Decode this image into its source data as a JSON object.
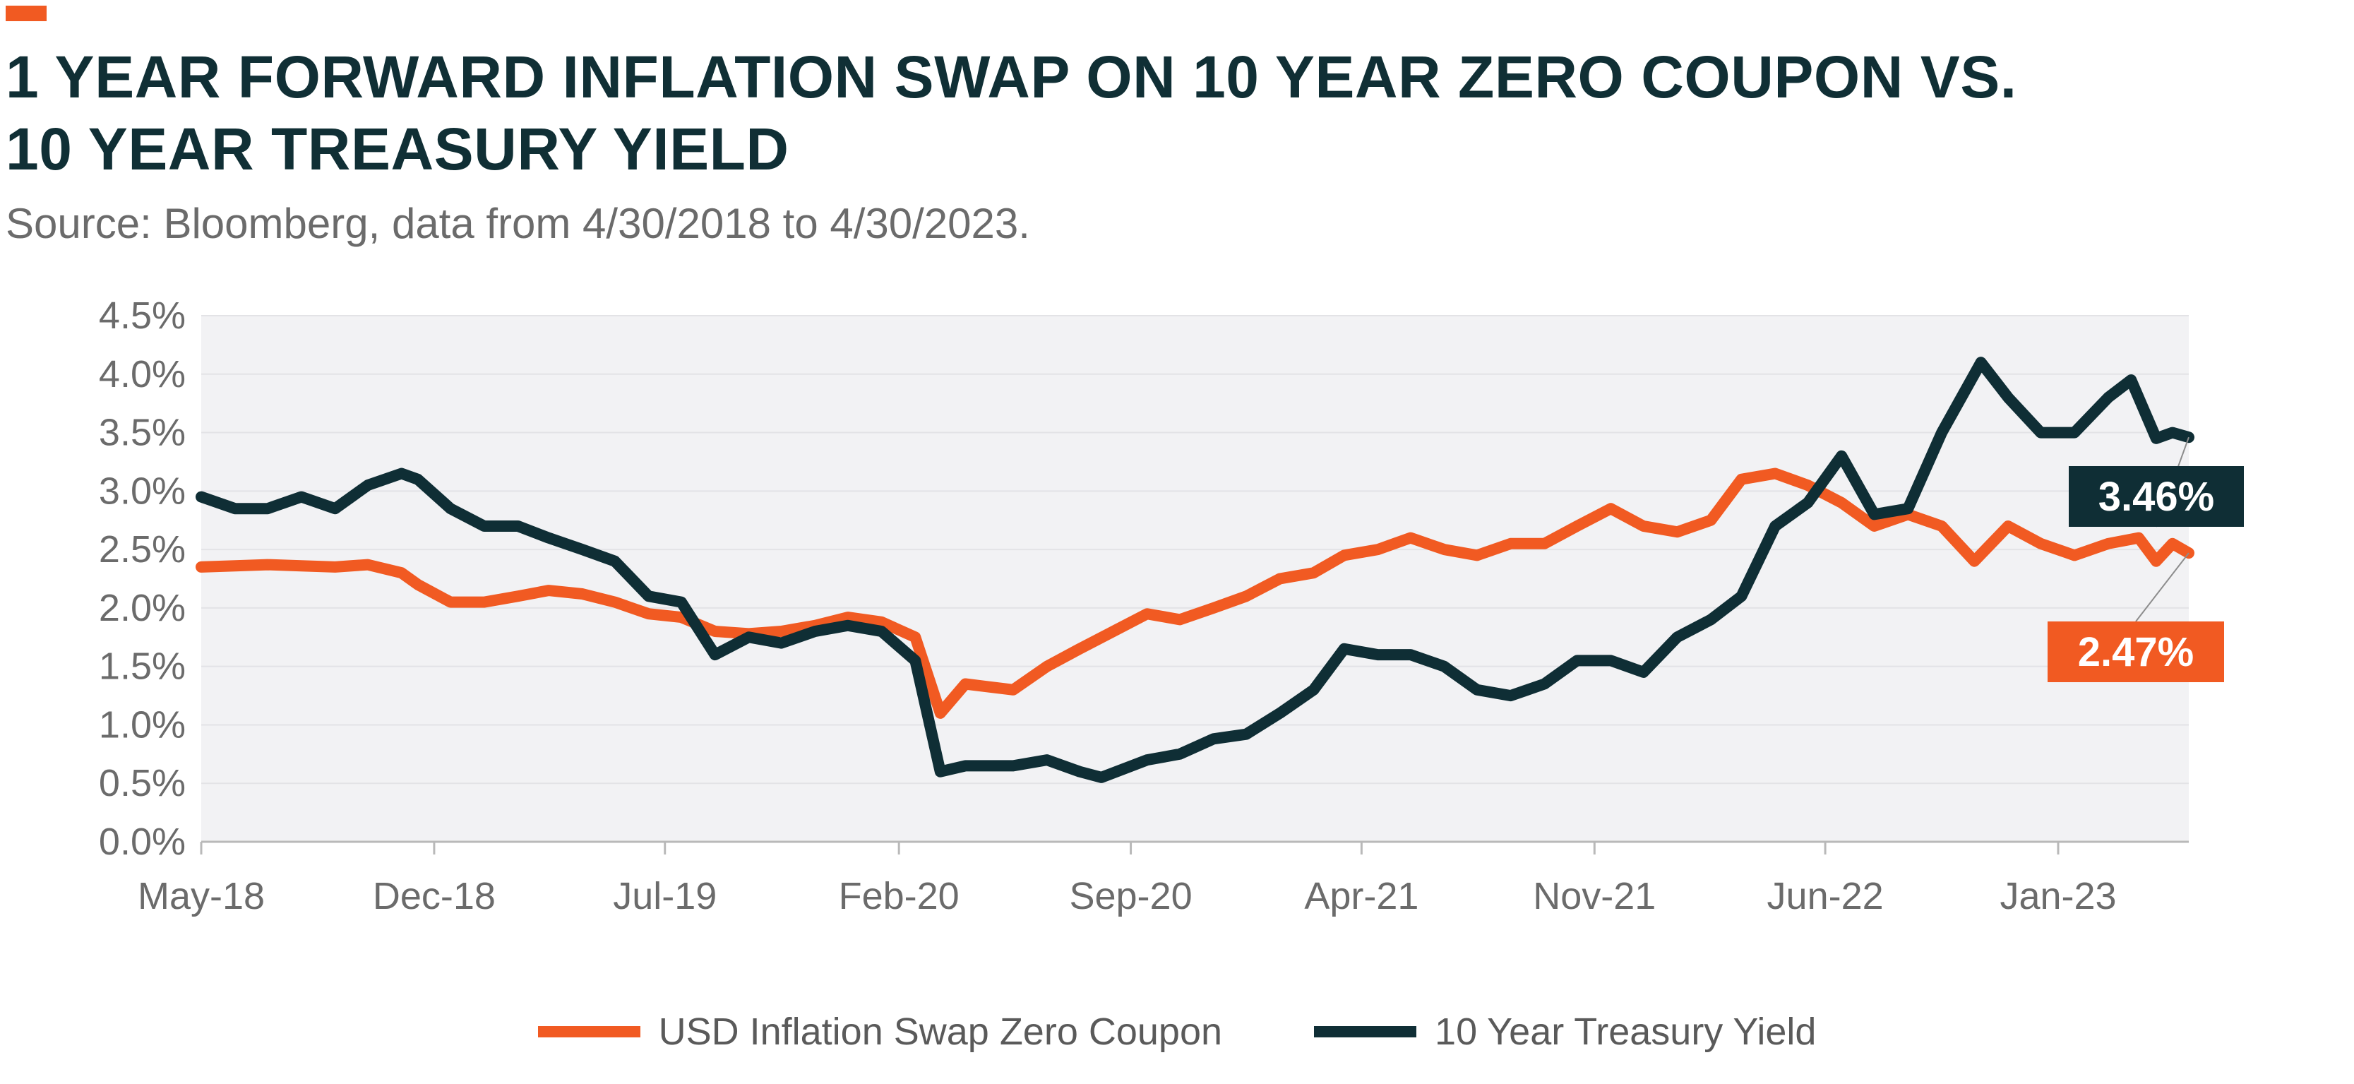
{
  "title_lines": [
    "1 YEAR FORWARD INFLATION SWAP ON 10 YEAR ZERO COUPON VS.",
    "10 YEAR TREASURY YIELD"
  ],
  "subtitle": "Source: Bloomberg, data from 4/30/2018 to 4/30/2023.",
  "chart_data": {
    "type": "line",
    "title": "1 YEAR FORWARD INFLATION SWAP ON 10 YEAR ZERO COUPON VS. 10 YEAR TREASURY YIELD",
    "xlabel": "",
    "ylabel": "",
    "xlim": [
      "2018-04-30",
      "2023-04-30"
    ],
    "ylim": [
      0,
      4.5
    ],
    "yticks": [
      "0.0%",
      "0.5%",
      "1.0%",
      "1.5%",
      "2.0%",
      "2.5%",
      "3.0%",
      "3.5%",
      "4.0%",
      "4.5%"
    ],
    "xticks": [
      {
        "label": "May-18",
        "date": "2018-04-30"
      },
      {
        "label": "Dec-18",
        "date": "2018-11-30"
      },
      {
        "label": "Jul-19",
        "date": "2019-06-30"
      },
      {
        "label": "Feb-20",
        "date": "2020-01-31"
      },
      {
        "label": "Sep-20",
        "date": "2020-08-31"
      },
      {
        "label": "Apr-21",
        "date": "2021-03-31"
      },
      {
        "label": "Nov-21",
        "date": "2021-10-31"
      },
      {
        "label": "Jun-22",
        "date": "2022-05-31"
      },
      {
        "label": "Jan-23",
        "date": "2022-12-31"
      }
    ],
    "grid": true,
    "legend_position": "bottom",
    "series": [
      {
        "name": "USD Inflation Swap Zero Coupon",
        "color": "#f15a22",
        "end_label": "2.47%",
        "points": [
          [
            "2018-04-30",
            2.35
          ],
          [
            "2018-05-31",
            2.36
          ],
          [
            "2018-06-30",
            2.37
          ],
          [
            "2018-07-31",
            2.36
          ],
          [
            "2018-08-31",
            2.35
          ],
          [
            "2018-09-30",
            2.37
          ],
          [
            "2018-10-31",
            2.3
          ],
          [
            "2018-11-15",
            2.2
          ],
          [
            "2018-12-15",
            2.05
          ],
          [
            "2019-01-15",
            2.05
          ],
          [
            "2019-02-15",
            2.1
          ],
          [
            "2019-03-15",
            2.15
          ],
          [
            "2019-04-15",
            2.12
          ],
          [
            "2019-05-15",
            2.05
          ],
          [
            "2019-06-15",
            1.95
          ],
          [
            "2019-07-15",
            1.92
          ],
          [
            "2019-08-15",
            1.8
          ],
          [
            "2019-09-15",
            1.78
          ],
          [
            "2019-10-15",
            1.8
          ],
          [
            "2019-11-15",
            1.85
          ],
          [
            "2019-12-15",
            1.92
          ],
          [
            "2020-01-15",
            1.88
          ],
          [
            "2020-02-15",
            1.75
          ],
          [
            "2020-03-09",
            1.1
          ],
          [
            "2020-04-01",
            1.35
          ],
          [
            "2020-05-15",
            1.3
          ],
          [
            "2020-06-15",
            1.5
          ],
          [
            "2020-07-15",
            1.65
          ],
          [
            "2020-08-15",
            1.8
          ],
          [
            "2020-09-15",
            1.95
          ],
          [
            "2020-10-15",
            1.9
          ],
          [
            "2020-11-15",
            2.0
          ],
          [
            "2020-12-15",
            2.1
          ],
          [
            "2021-01-15",
            2.25
          ],
          [
            "2021-02-15",
            2.3
          ],
          [
            "2021-03-15",
            2.45
          ],
          [
            "2021-04-15",
            2.5
          ],
          [
            "2021-05-15",
            2.6
          ],
          [
            "2021-06-15",
            2.5
          ],
          [
            "2021-07-15",
            2.45
          ],
          [
            "2021-08-15",
            2.55
          ],
          [
            "2021-09-15",
            2.55
          ],
          [
            "2021-10-15",
            2.7
          ],
          [
            "2021-11-15",
            2.85
          ],
          [
            "2021-12-15",
            2.7
          ],
          [
            "2022-01-15",
            2.65
          ],
          [
            "2022-02-15",
            2.75
          ],
          [
            "2022-03-15",
            3.1
          ],
          [
            "2022-04-15",
            3.15
          ],
          [
            "2022-05-15",
            3.05
          ],
          [
            "2022-06-15",
            2.9
          ],
          [
            "2022-07-15",
            2.7
          ],
          [
            "2022-08-15",
            2.8
          ],
          [
            "2022-09-15",
            2.7
          ],
          [
            "2022-10-15",
            2.4
          ],
          [
            "2022-11-15",
            2.7
          ],
          [
            "2022-12-15",
            2.55
          ],
          [
            "2023-01-15",
            2.45
          ],
          [
            "2023-02-15",
            2.55
          ],
          [
            "2023-03-15",
            2.6
          ],
          [
            "2023-03-31",
            2.4
          ],
          [
            "2023-04-15",
            2.55
          ],
          [
            "2023-04-30",
            2.47
          ]
        ]
      },
      {
        "name": "10 Year Treasury Yield",
        "color": "#0f2e35",
        "end_label": "3.46%",
        "points": [
          [
            "2018-04-30",
            2.95
          ],
          [
            "2018-05-31",
            2.85
          ],
          [
            "2018-06-30",
            2.85
          ],
          [
            "2018-07-31",
            2.95
          ],
          [
            "2018-08-31",
            2.85
          ],
          [
            "2018-09-30",
            3.05
          ],
          [
            "2018-10-31",
            3.15
          ],
          [
            "2018-11-15",
            3.1
          ],
          [
            "2018-12-15",
            2.85
          ],
          [
            "2019-01-15",
            2.7
          ],
          [
            "2019-02-15",
            2.7
          ],
          [
            "2019-03-15",
            2.6
          ],
          [
            "2019-04-15",
            2.5
          ],
          [
            "2019-05-15",
            2.4
          ],
          [
            "2019-06-15",
            2.1
          ],
          [
            "2019-07-15",
            2.05
          ],
          [
            "2019-08-15",
            1.6
          ],
          [
            "2019-09-15",
            1.75
          ],
          [
            "2019-10-15",
            1.7
          ],
          [
            "2019-11-15",
            1.8
          ],
          [
            "2019-12-15",
            1.85
          ],
          [
            "2020-01-15",
            1.8
          ],
          [
            "2020-02-15",
            1.55
          ],
          [
            "2020-03-09",
            0.6
          ],
          [
            "2020-04-01",
            0.65
          ],
          [
            "2020-05-15",
            0.65
          ],
          [
            "2020-06-15",
            0.7
          ],
          [
            "2020-07-15",
            0.6
          ],
          [
            "2020-08-04",
            0.55
          ],
          [
            "2020-09-15",
            0.7
          ],
          [
            "2020-10-15",
            0.75
          ],
          [
            "2020-11-15",
            0.88
          ],
          [
            "2020-12-15",
            0.92
          ],
          [
            "2021-01-15",
            1.1
          ],
          [
            "2021-02-15",
            1.3
          ],
          [
            "2021-03-15",
            1.65
          ],
          [
            "2021-04-15",
            1.6
          ],
          [
            "2021-05-15",
            1.6
          ],
          [
            "2021-06-15",
            1.5
          ],
          [
            "2021-07-15",
            1.3
          ],
          [
            "2021-08-15",
            1.25
          ],
          [
            "2021-09-15",
            1.35
          ],
          [
            "2021-10-15",
            1.55
          ],
          [
            "2021-11-15",
            1.55
          ],
          [
            "2021-12-15",
            1.45
          ],
          [
            "2022-01-15",
            1.75
          ],
          [
            "2022-02-15",
            1.9
          ],
          [
            "2022-03-15",
            2.1
          ],
          [
            "2022-04-15",
            2.7
          ],
          [
            "2022-05-15",
            2.9
          ],
          [
            "2022-06-15",
            3.3
          ],
          [
            "2022-07-15",
            2.8
          ],
          [
            "2022-08-15",
            2.85
          ],
          [
            "2022-09-15",
            3.5
          ],
          [
            "2022-10-21",
            4.1
          ],
          [
            "2022-11-15",
            3.8
          ],
          [
            "2022-12-15",
            3.5
          ],
          [
            "2023-01-15",
            3.5
          ],
          [
            "2023-02-15",
            3.8
          ],
          [
            "2023-03-08",
            3.95
          ],
          [
            "2023-03-31",
            3.45
          ],
          [
            "2023-04-15",
            3.5
          ],
          [
            "2023-04-30",
            3.46
          ]
        ]
      }
    ]
  }
}
